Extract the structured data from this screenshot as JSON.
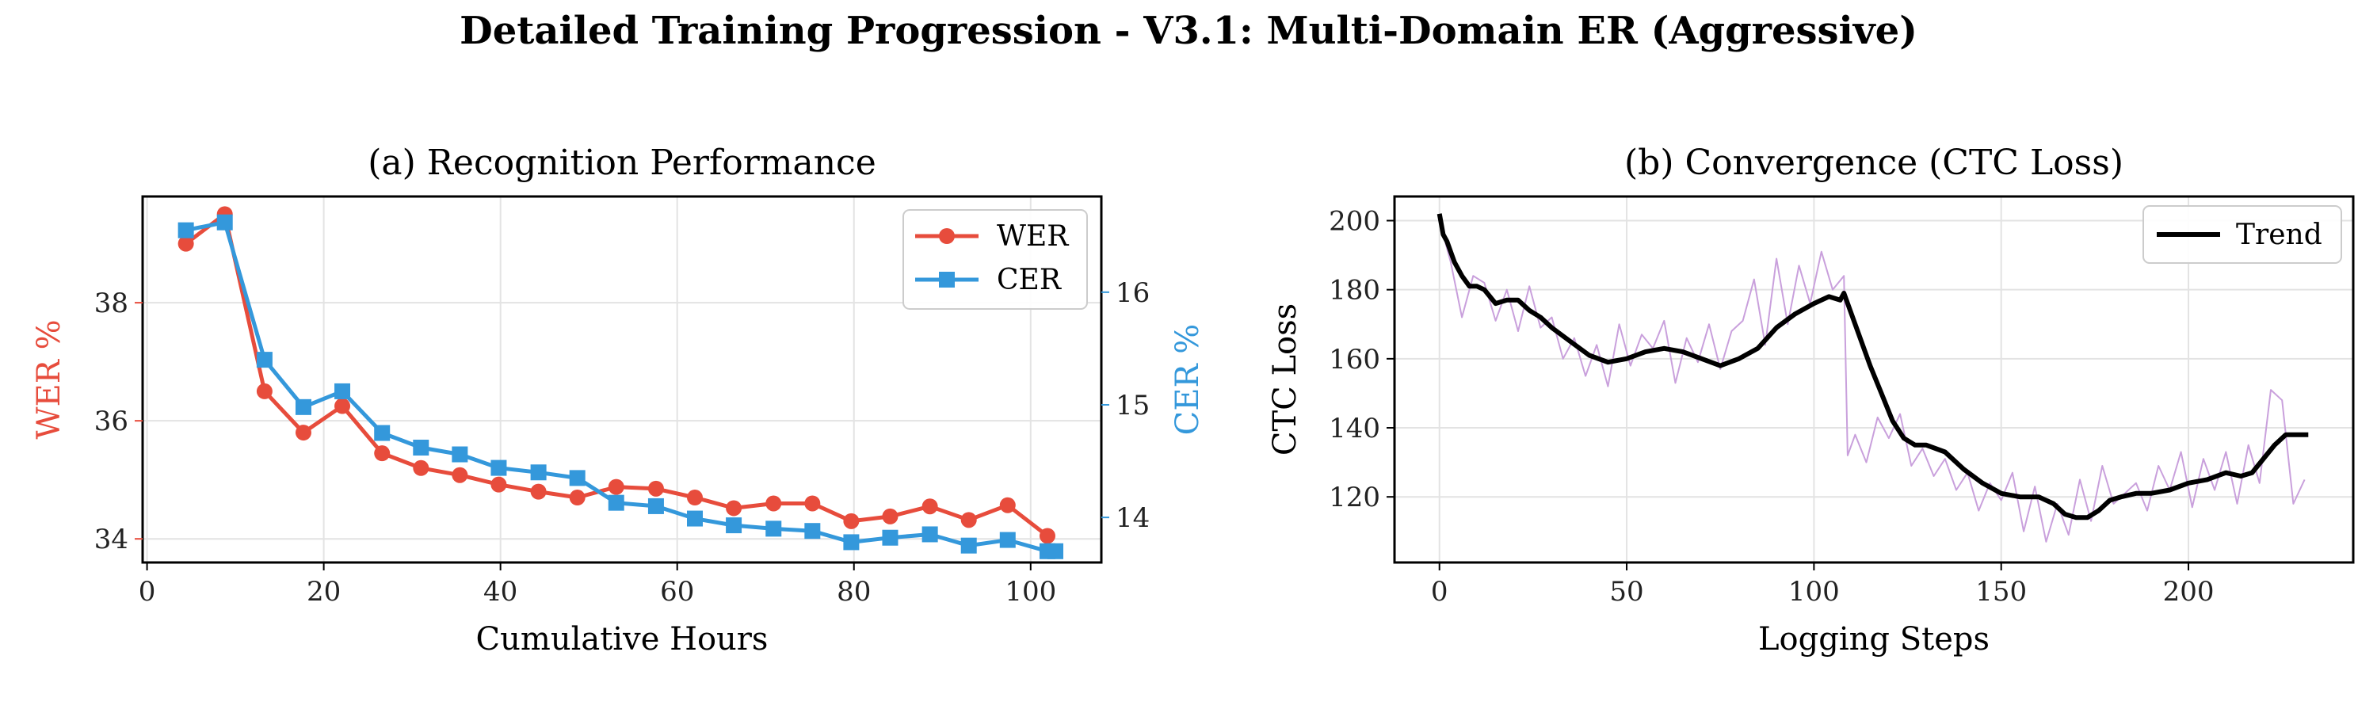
{
  "suptitle": "Detailed Training Progression - V3.1: Multi-Domain ER (Aggressive)",
  "colors": {
    "wer": "#e74c3c",
    "cer": "#3498db",
    "raw_loss": "#c9a0dc",
    "trend": "#000000",
    "grid": "#e3e3e3"
  },
  "chart_data": [
    {
      "type": "line",
      "title": "(a) Recognition Performance",
      "xlabel": "Cumulative Hours",
      "ylabel": "WER %",
      "ylabel_right": "CER %",
      "xlim": [
        -0.5,
        108
      ],
      "ylim": [
        33.6,
        39.8
      ],
      "ylim_right": [
        13.6,
        16.85
      ],
      "xticks": [
        0,
        20,
        40,
        60,
        80,
        100
      ],
      "yticks": [
        34,
        36,
        38
      ],
      "yticks_right": [
        14,
        15,
        16
      ],
      "grid": true,
      "legend_position": "top-right",
      "series": [
        {
          "name": "WER",
          "axis": "left",
          "marker": "circle",
          "x": [
            4.4,
            8.8,
            13.3,
            17.7,
            22.1,
            26.6,
            31.0,
            35.4,
            39.8,
            44.3,
            48.7,
            53.1,
            57.6,
            62.0,
            66.4,
            70.9,
            75.3,
            79.7,
            84.1,
            88.6,
            93.0,
            97.4,
            101.9
          ],
          "values": [
            39.0,
            39.5,
            36.5,
            35.8,
            36.25,
            35.45,
            35.2,
            35.08,
            34.92,
            34.8,
            34.7,
            34.88,
            34.85,
            34.7,
            34.52,
            34.6,
            34.6,
            34.3,
            34.38,
            34.55,
            34.32,
            34.57,
            34.05
          ]
        },
        {
          "name": "CER",
          "axis": "right",
          "marker": "square",
          "x": [
            4.4,
            8.8,
            13.3,
            17.7,
            22.1,
            26.6,
            31.0,
            35.4,
            39.8,
            44.3,
            48.7,
            53.1,
            57.6,
            62.0,
            66.4,
            70.9,
            75.3,
            79.7,
            84.1,
            88.6,
            93.0,
            97.4,
            101.9,
            102.8
          ],
          "values": [
            16.55,
            16.62,
            15.4,
            14.98,
            15.12,
            14.75,
            14.62,
            14.56,
            14.44,
            14.4,
            14.35,
            14.13,
            14.1,
            13.99,
            13.93,
            13.9,
            13.88,
            13.78,
            13.82,
            13.85,
            13.75,
            13.8,
            13.7,
            13.7
          ]
        }
      ]
    },
    {
      "type": "line",
      "title": "(b) Convergence (CTC Loss)",
      "xlabel": "Logging Steps",
      "ylabel": "CTC Loss",
      "xlim": [
        -12,
        244
      ],
      "ylim": [
        101,
        207
      ],
      "xticks": [
        0,
        50,
        100,
        150,
        200
      ],
      "yticks": [
        120,
        140,
        160,
        180,
        200
      ],
      "grid": true,
      "legend_position": "top-right",
      "series": [
        {
          "name": "",
          "style": "raw",
          "x": [
            0,
            3,
            6,
            9,
            12,
            15,
            18,
            21,
            24,
            27,
            30,
            33,
            36,
            39,
            42,
            45,
            48,
            51,
            54,
            57,
            60,
            63,
            66,
            69,
            72,
            75,
            78,
            81,
            84,
            87,
            90,
            93,
            96,
            99,
            102,
            105,
            108,
            109,
            111,
            114,
            117,
            120,
            123,
            126,
            129,
            132,
            135,
            138,
            141,
            144,
            147,
            150,
            153,
            156,
            159,
            162,
            165,
            168,
            171,
            174,
            177,
            180,
            183,
            186,
            189,
            192,
            195,
            198,
            201,
            204,
            207,
            210,
            213,
            216,
            219,
            222,
            225,
            228,
            231
          ],
          "values": [
            200,
            188,
            172,
            184,
            182,
            171,
            180,
            168,
            181,
            169,
            172,
            160,
            166,
            155,
            164,
            152,
            170,
            158,
            167,
            163,
            171,
            153,
            166,
            159,
            170,
            157,
            168,
            171,
            183,
            164,
            189,
            170,
            187,
            176,
            191,
            180,
            184,
            132,
            138,
            130,
            143,
            137,
            144,
            129,
            134,
            126,
            131,
            122,
            127,
            116,
            124,
            119,
            127,
            110,
            123,
            107,
            118,
            109,
            125,
            113,
            129,
            118,
            121,
            124,
            116,
            129,
            122,
            133,
            117,
            131,
            122,
            133,
            118,
            135,
            124,
            151,
            148,
            118,
            125
          ]
        },
        {
          "name": "Trend",
          "style": "trend",
          "x": [
            0,
            1,
            2,
            4,
            6,
            8,
            10,
            12,
            15,
            18,
            21,
            24,
            27,
            30,
            35,
            40,
            45,
            50,
            55,
            60,
            65,
            70,
            75,
            80,
            85,
            90,
            95,
            100,
            104,
            107,
            108,
            111,
            115,
            118,
            121,
            124,
            127,
            130,
            135,
            140,
            145,
            150,
            155,
            160,
            164,
            167,
            170,
            173,
            176,
            179,
            182,
            186,
            190,
            195,
            200,
            205,
            210,
            214,
            217,
            220,
            223,
            226,
            228,
            232
          ],
          "values": [
            202,
            196,
            194,
            188,
            184,
            181,
            181,
            180,
            176,
            177,
            177,
            174,
            172,
            169,
            165,
            161,
            159,
            160,
            162,
            163,
            162,
            160,
            158,
            160,
            163,
            169,
            173,
            176,
            178,
            177,
            179,
            170,
            158,
            150,
            142,
            137,
            135,
            135,
            133,
            128,
            124,
            121,
            120,
            120,
            118,
            115,
            114,
            114,
            116,
            119,
            120,
            121,
            121,
            122,
            124,
            125,
            127,
            126,
            127,
            131,
            135,
            138,
            138,
            138
          ]
        }
      ]
    }
  ]
}
